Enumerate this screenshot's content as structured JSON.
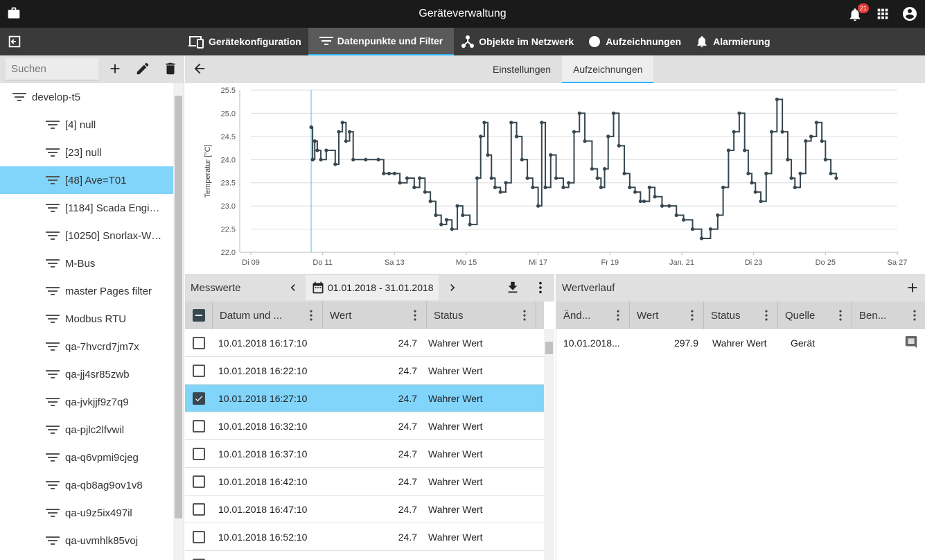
{
  "app": {
    "title": "Geräteverwaltung",
    "notifications": "21"
  },
  "nav": {
    "tabs": [
      {
        "label": "Gerätekonfiguration",
        "icon": "devices-icon"
      },
      {
        "label": "Datenpunkte und Filter",
        "icon": "filter-icon"
      },
      {
        "label": "Objekte im Netzwerk",
        "icon": "network-icon"
      },
      {
        "label": "Aufzeichnungen",
        "icon": "circle-icon"
      },
      {
        "label": "Alarmierung",
        "icon": "bell-icon"
      }
    ],
    "active_index": 1
  },
  "sidebar": {
    "search_placeholder": "Suchen",
    "root": "develop-t5",
    "items": [
      "[4] null",
      "[23] null",
      "[48] Ave=T01",
      "[1184] Scada Engi…",
      "[10250] Snorlax-W…",
      "M-Bus",
      "master Pages filter",
      "Modbus RTU",
      "qa-7hvcrd7jm7x",
      "qa-jj4sr85zwb",
      "qa-jvkjjf9z7q9",
      "qa-pjlc2lfvwil",
      "qa-q6vpmi9cjeg",
      "qa-qb8ag9ov1v8",
      "qa-u9z5ix497il",
      "qa-uvmhlk85voj"
    ],
    "selected_index": 2
  },
  "subtabs": [
    "Einstellungen",
    "Aufzeichnungen"
  ],
  "chart_data": {
    "type": "line",
    "ylabel": "Temperatur [°C]",
    "ylim": [
      22.0,
      25.5
    ],
    "yticks": [
      "22.0",
      "22.5",
      "23.0",
      "23.5",
      "24.0",
      "24.5",
      "25.0",
      "25.5"
    ],
    "xlim": [
      9,
      27
    ],
    "xticks": [
      {
        "x": 9,
        "label": "Di 09"
      },
      {
        "x": 11,
        "label": "Do 11"
      },
      {
        "x": 13,
        "label": "Sa 13"
      },
      {
        "x": 15,
        "label": "Mo 15"
      },
      {
        "x": 17,
        "label": "Mi 17"
      },
      {
        "x": 19,
        "label": "Fr 19"
      },
      {
        "x": 21,
        "label": "Jan. 21"
      },
      {
        "x": 23,
        "label": "Di 23"
      },
      {
        "x": 25,
        "label": "Do 25"
      },
      {
        "x": 27,
        "label": "Sa 27"
      }
    ],
    "cursor_x": 10.68,
    "series": [
      {
        "color": "#37474f",
        "x": [
          10.68,
          10.72,
          10.78,
          10.85,
          10.95,
          11.1,
          11.35,
          11.45,
          11.55,
          11.65,
          11.75,
          11.85,
          12.2,
          12.55,
          12.7,
          12.85,
          13.0,
          13.15,
          13.35,
          13.55,
          13.7,
          13.85,
          14.0,
          14.15,
          14.3,
          14.45,
          14.6,
          14.75,
          14.9,
          15.1,
          15.3,
          15.4,
          15.5,
          15.6,
          15.7,
          15.8,
          15.95,
          16.1,
          16.25,
          16.4,
          16.55,
          16.7,
          16.85,
          17.0,
          17.1,
          17.2,
          17.35,
          17.5,
          17.7,
          17.85,
          18.0,
          18.15,
          18.3,
          18.5,
          18.65,
          18.75,
          18.85,
          18.95,
          19.1,
          19.25,
          19.4,
          19.55,
          19.7,
          19.85,
          19.95,
          20.1,
          20.25,
          20.45,
          20.65,
          20.85,
          21.05,
          21.3,
          21.55,
          21.8,
          22.0,
          22.15,
          22.3,
          22.45,
          22.6,
          22.75,
          22.85,
          22.95,
          23.05,
          23.2,
          23.35,
          23.5,
          23.65,
          23.8,
          23.95,
          24.05,
          24.15,
          24.3,
          24.45,
          24.6,
          24.75,
          24.9,
          25.0,
          25.15,
          25.3
        ],
        "y": [
          24.7,
          24.0,
          24.4,
          24.2,
          24.0,
          24.2,
          23.9,
          24.6,
          24.8,
          24.4,
          24.6,
          24.0,
          24.0,
          24.0,
          23.7,
          23.7,
          23.7,
          23.5,
          23.6,
          23.4,
          23.6,
          23.3,
          23.1,
          22.8,
          22.6,
          22.7,
          22.5,
          23.0,
          22.8,
          22.6,
          23.6,
          24.5,
          24.8,
          24.1,
          23.6,
          23.4,
          23.3,
          23.5,
          24.8,
          24.5,
          24.0,
          23.6,
          23.4,
          23.0,
          24.8,
          23.4,
          24.1,
          23.6,
          23.4,
          23.5,
          24.6,
          25.0,
          24.4,
          23.8,
          23.6,
          23.4,
          23.8,
          24.5,
          25.0,
          24.3,
          23.7,
          23.4,
          23.3,
          23.1,
          23.1,
          23.4,
          23.2,
          23.0,
          23.0,
          22.8,
          22.7,
          22.5,
          22.3,
          22.5,
          22.8,
          23.4,
          24.2,
          24.6,
          25.0,
          24.2,
          23.7,
          23.5,
          23.3,
          23.1,
          23.7,
          24.6,
          25.3,
          24.6,
          24.0,
          23.6,
          23.4,
          23.7,
          24.4,
          24.5,
          24.8,
          24.4,
          24.0,
          23.7,
          23.6
        ]
      }
    ]
  },
  "messwerte": {
    "title": "Messwerte",
    "daterange": "01.01.2018 - 31.01.2018",
    "columns": [
      "Datum und ...",
      "Wert",
      "Status"
    ],
    "rows": [
      {
        "date": "10.01.2018 16:17:10",
        "value": "24.7",
        "status": "Wahrer Wert"
      },
      {
        "date": "10.01.2018 16:22:10",
        "value": "24.7",
        "status": "Wahrer Wert"
      },
      {
        "date": "10.01.2018 16:27:10",
        "value": "24.7",
        "status": "Wahrer Wert"
      },
      {
        "date": "10.01.2018 16:32:10",
        "value": "24.7",
        "status": "Wahrer Wert"
      },
      {
        "date": "10.01.2018 16:37:10",
        "value": "24.7",
        "status": "Wahrer Wert"
      },
      {
        "date": "10.01.2018 16:42:10",
        "value": "24.7",
        "status": "Wahrer Wert"
      },
      {
        "date": "10.01.2018 16:47:10",
        "value": "24.7",
        "status": "Wahrer Wert"
      },
      {
        "date": "10.01.2018 16:52:10",
        "value": "24.7",
        "status": "Wahrer Wert"
      },
      {
        "date": "",
        "value": "",
        "status": ""
      }
    ],
    "selected_index": 2
  },
  "wertverlauf": {
    "title": "Wertverlauf",
    "columns": [
      "Änd...",
      "Wert",
      "Status",
      "Quelle",
      "Ben..."
    ],
    "rows": [
      {
        "changed": "10.01.2018...",
        "value": "297.9",
        "status": "Wahrer Wert",
        "source": "Gerät"
      }
    ]
  }
}
